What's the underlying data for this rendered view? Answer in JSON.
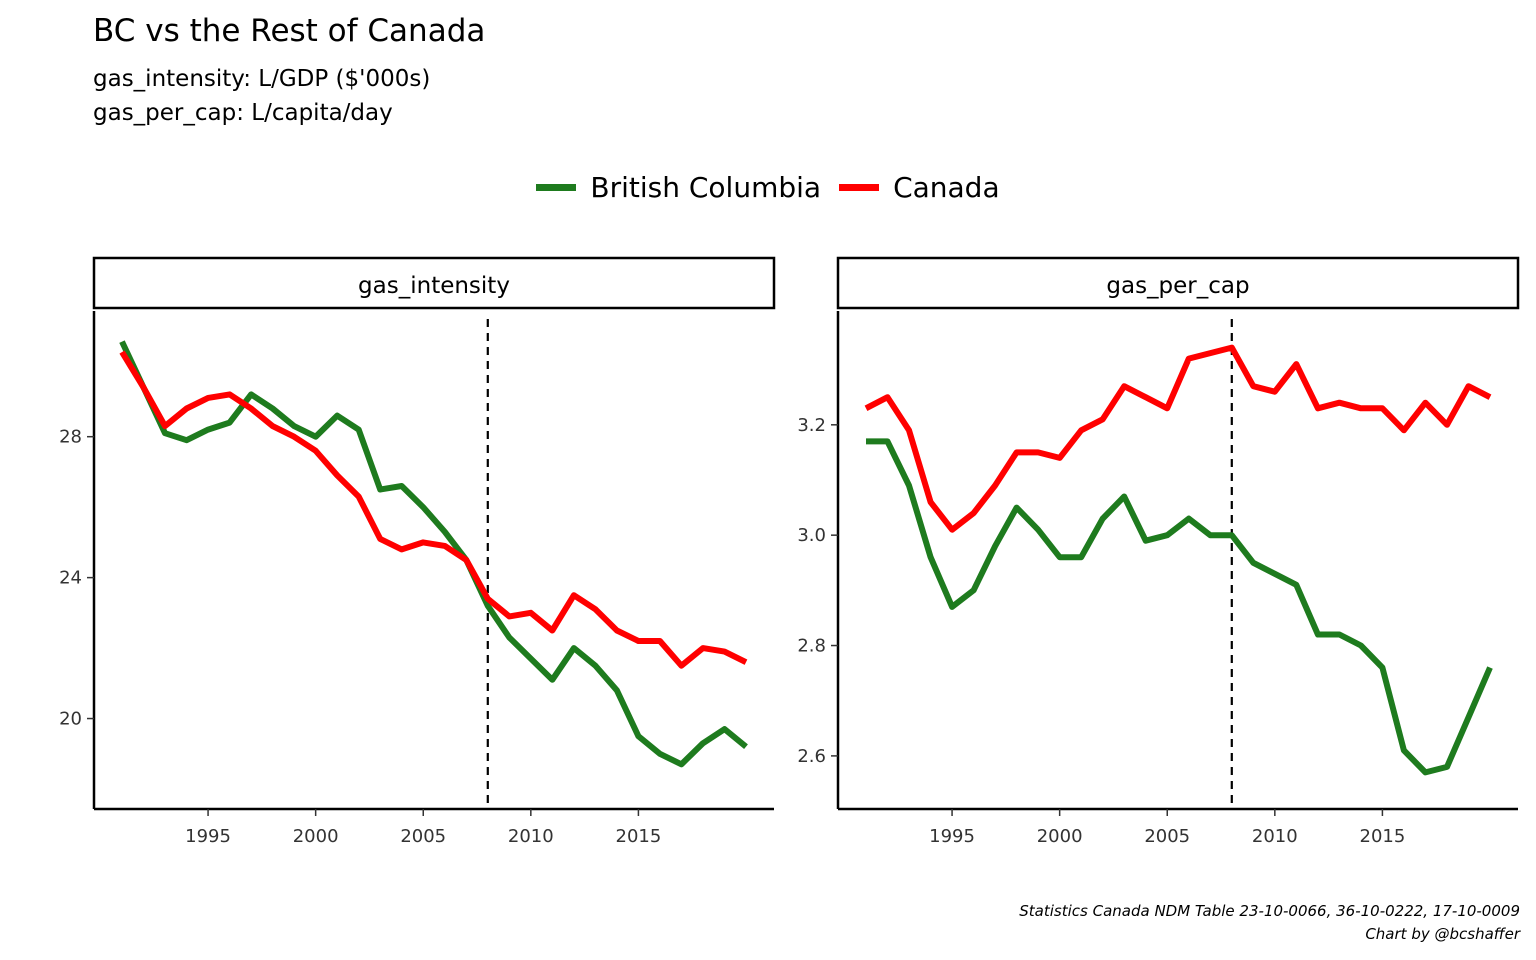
{
  "title": "BC vs the Rest of Canada",
  "subtitle_lines": [
    "gas_intensity: L/GDP ($'000s)",
    "gas_per_cap: L/capita/day"
  ],
  "caption_lines": [
    "Statistics Canada NDM Table 23-10-0066, 36-10-0222, 17-10-0009",
    "Chart by @bcshaffer"
  ],
  "colors": {
    "bc": "#1e7b1e",
    "canada": "#ff0000",
    "axis": "#000000",
    "vline": "#000000"
  },
  "chart_data": [
    {
      "type": "line",
      "facet": "gas_intensity",
      "x": [
        1991,
        1992,
        1993,
        1994,
        1995,
        1996,
        1997,
        1998,
        1999,
        2000,
        2001,
        2002,
        2003,
        2004,
        2005,
        2006,
        2007,
        2008,
        2009,
        2010,
        2011,
        2012,
        2013,
        2014,
        2015,
        2016,
        2017,
        2018,
        2019,
        2020
      ],
      "series": [
        {
          "name": "British Columbia",
          "values": [
            30.7,
            29.4,
            28.1,
            27.9,
            28.2,
            28.4,
            29.2,
            28.8,
            28.3,
            28.0,
            28.6,
            28.2,
            26.5,
            26.6,
            26.0,
            25.3,
            24.5,
            23.2,
            22.3,
            21.7,
            21.1,
            22.0,
            21.5,
            20.8,
            19.5,
            19.0,
            18.7,
            19.3,
            19.7,
            19.2
          ]
        },
        {
          "name": "Canada",
          "values": [
            30.4,
            29.4,
            28.3,
            28.8,
            29.1,
            29.2,
            28.8,
            28.3,
            28.0,
            27.6,
            26.9,
            26.3,
            25.1,
            24.8,
            25.0,
            24.9,
            24.5,
            23.4,
            22.9,
            23.0,
            22.5,
            23.5,
            23.1,
            22.5,
            22.2,
            22.2,
            21.5,
            22.0,
            21.9,
            21.6
          ]
        }
      ],
      "xticks": [
        1995,
        2000,
        2005,
        2010,
        2015
      ],
      "yticks": [
        20,
        24,
        28
      ],
      "xlim": [
        1991,
        2020
      ],
      "ylim": [
        18,
        31
      ],
      "vline": 2008,
      "grid": false
    },
    {
      "type": "line",
      "facet": "gas_per_cap",
      "x": [
        1991,
        1992,
        1993,
        1994,
        1995,
        1996,
        1997,
        1998,
        1999,
        2000,
        2001,
        2002,
        2003,
        2004,
        2005,
        2006,
        2007,
        2008,
        2009,
        2010,
        2011,
        2012,
        2013,
        2014,
        2015,
        2016,
        2017,
        2018,
        2019,
        2020
      ],
      "series": [
        {
          "name": "British Columbia",
          "values": [
            3.17,
            3.17,
            3.09,
            2.96,
            2.87,
            2.9,
            2.98,
            3.05,
            3.01,
            2.96,
            2.96,
            3.03,
            3.07,
            2.99,
            3.0,
            3.03,
            3.0,
            3.0,
            2.95,
            2.93,
            2.91,
            2.82,
            2.82,
            2.8,
            2.76,
            2.61,
            2.57,
            2.58,
            2.67,
            2.76
          ]
        },
        {
          "name": "Canada",
          "values": [
            3.23,
            3.25,
            3.19,
            3.06,
            3.01,
            3.04,
            3.09,
            3.15,
            3.15,
            3.14,
            3.19,
            3.21,
            3.27,
            3.25,
            3.23,
            3.32,
            3.33,
            3.34,
            3.27,
            3.26,
            3.31,
            3.23,
            3.24,
            3.23,
            3.23,
            3.19,
            3.24,
            3.2,
            3.27,
            3.25
          ]
        }
      ],
      "xticks": [
        1995,
        2000,
        2005,
        2010,
        2015
      ],
      "yticks": [
        2.6,
        2.8,
        3.0,
        3.2
      ],
      "xlim": [
        1991,
        2020
      ],
      "ylim": [
        2.54,
        3.37
      ],
      "vline": 2008,
      "grid": false
    }
  ]
}
